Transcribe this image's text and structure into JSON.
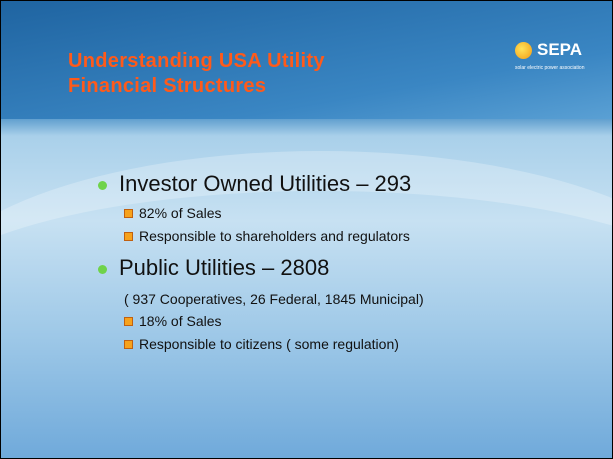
{
  "header": {
    "title": [
      "Understanding USA Utility",
      "Financial Structures"
    ],
    "logo": {
      "name": "SEPA",
      "tagline": "solar electric power association"
    }
  },
  "bullets": [
    {
      "text": "Investor Owned Utilities – 293",
      "notes": [],
      "subs": [
        "82% of Sales",
        "Responsible to shareholders and regulators"
      ]
    },
    {
      "text": "Public Utilities – 2808",
      "notes": [
        "( 937 Cooperatives, 26 Federal, 1845 Municipal)"
      ],
      "subs": [
        "18% of Sales",
        "Responsible to citizens ( some regulation)"
      ]
    }
  ]
}
